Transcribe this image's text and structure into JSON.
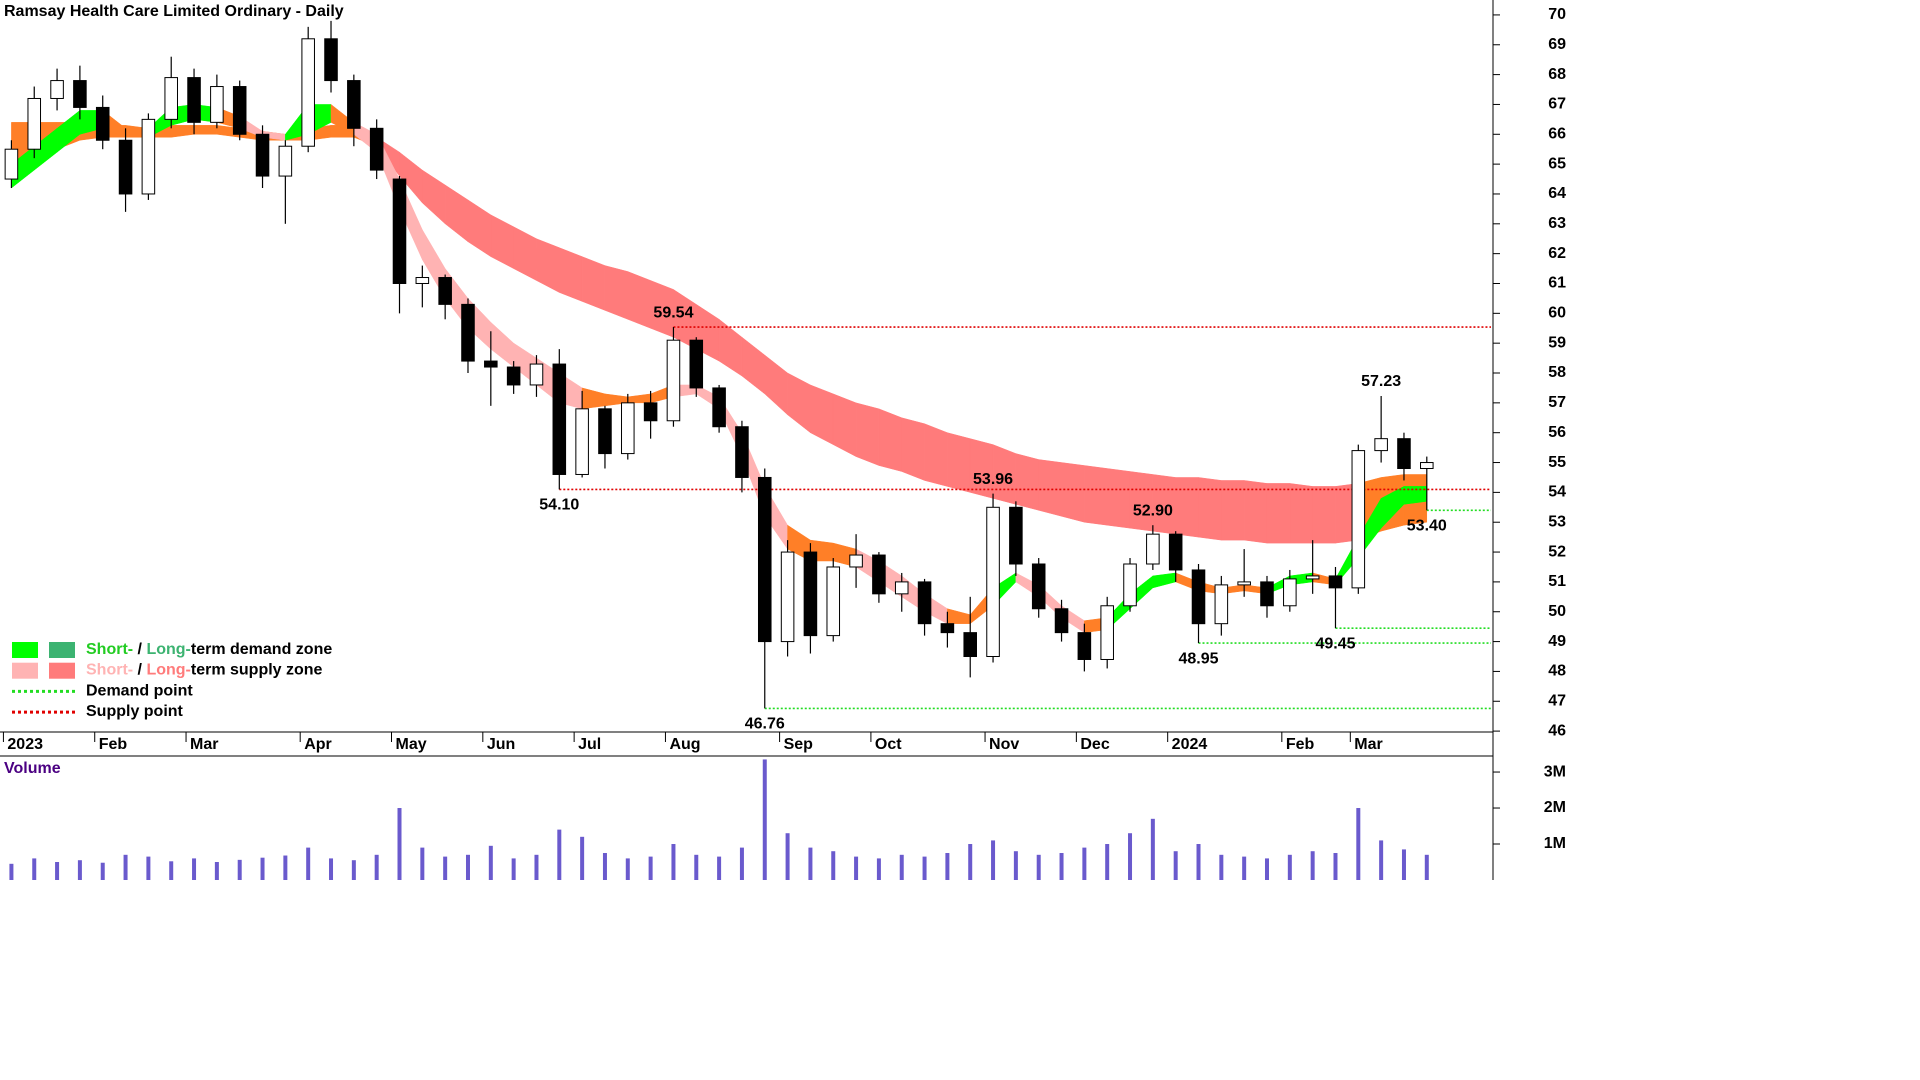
{
  "chart_data": {
    "type": "candlestick",
    "title": "Ramsay Health Care Limited Ordinary - Daily",
    "colors": {
      "up": "#ffffff",
      "down": "#000000",
      "outline": "#000000"
    },
    "open": [
      64.5,
      65.5,
      67.2,
      67.8,
      66.9,
      65.8,
      64.0,
      66.5,
      67.9,
      66.4,
      67.6,
      66.0,
      64.6,
      65.6,
      69.2,
      67.8,
      66.2,
      64.5,
      61.0,
      61.2,
      60.3,
      58.4,
      58.2,
      57.6,
      58.3,
      54.6,
      56.8,
      55.3,
      57.0,
      56.4,
      59.1,
      57.5,
      56.2,
      54.5,
      49.0,
      52.0,
      49.2,
      51.5,
      51.9,
      50.6,
      51.0,
      49.6,
      49.3,
      48.5,
      53.5,
      51.6,
      50.1,
      49.3,
      48.4,
      50.2,
      51.6,
      52.6,
      51.4,
      49.6,
      50.9,
      51.0,
      50.2,
      51.1,
      51.2,
      50.8,
      55.4,
      55.8,
      54.8
    ],
    "high": [
      65.8,
      67.6,
      68.2,
      68.3,
      67.3,
      66.2,
      66.7,
      68.6,
      68.2,
      68.0,
      67.8,
      66.3,
      65.8,
      69.6,
      69.8,
      68.0,
      66.5,
      64.6,
      61.6,
      61.3,
      60.5,
      59.4,
      58.4,
      58.6,
      58.8,
      57.4,
      56.9,
      57.3,
      57.4,
      59.54,
      59.2,
      57.6,
      56.4,
      54.8,
      52.4,
      52.3,
      51.8,
      52.6,
      52.0,
      51.3,
      51.1,
      50.0,
      50.5,
      53.96,
      53.7,
      51.8,
      50.4,
      49.6,
      50.5,
      51.8,
      52.9,
      52.7,
      51.6,
      51.2,
      52.1,
      51.2,
      51.4,
      52.4,
      51.5,
      55.6,
      57.23,
      56.0,
      55.2
    ],
    "low": [
      64.2,
      65.2,
      66.8,
      66.5,
      65.5,
      63.4,
      63.8,
      66.2,
      66.0,
      66.2,
      65.8,
      64.2,
      63.0,
      65.4,
      67.4,
      65.6,
      64.5,
      60.0,
      60.2,
      59.8,
      58.0,
      56.9,
      57.3,
      57.2,
      54.1,
      54.5,
      54.8,
      55.1,
      55.8,
      56.2,
      57.2,
      56.0,
      54.0,
      46.76,
      48.5,
      48.6,
      49.0,
      50.8,
      50.3,
      50.0,
      49.2,
      48.8,
      47.8,
      48.3,
      51.2,
      49.8,
      49.0,
      48.0,
      48.1,
      50.0,
      51.4,
      51.0,
      48.95,
      49.2,
      50.5,
      49.8,
      50.0,
      50.6,
      49.45,
      50.6,
      55.0,
      54.4,
      53.4
    ],
    "close": [
      65.5,
      67.2,
      67.8,
      66.9,
      65.8,
      64.0,
      66.5,
      67.9,
      66.4,
      67.6,
      66.0,
      64.6,
      65.6,
      69.2,
      67.8,
      66.2,
      64.8,
      61.0,
      61.2,
      60.3,
      58.4,
      58.2,
      57.6,
      58.3,
      54.6,
      56.8,
      55.3,
      57.0,
      56.4,
      59.1,
      57.5,
      56.2,
      54.5,
      49.0,
      52.0,
      49.2,
      51.5,
      51.9,
      50.6,
      51.0,
      49.6,
      49.3,
      48.5,
      53.5,
      51.6,
      50.1,
      49.3,
      48.4,
      50.2,
      51.6,
      52.6,
      51.4,
      49.6,
      50.9,
      51.0,
      50.2,
      51.1,
      51.2,
      50.8,
      55.4,
      55.8,
      54.8,
      55.0
    ],
    "volume": {
      "label": "Volume",
      "color": "#6a5acd",
      "values": [
        450000,
        600000,
        500000,
        550000,
        480000,
        700000,
        650000,
        520000,
        600000,
        500000,
        560000,
        620000,
        680000,
        900000,
        600000,
        550000,
        700000,
        2000000,
        900000,
        650000,
        700000,
        950000,
        600000,
        700000,
        1400000,
        1200000,
        750000,
        600000,
        650000,
        1000000,
        700000,
        650000,
        900000,
        3350000,
        1300000,
        900000,
        800000,
        650000,
        600000,
        700000,
        650000,
        750000,
        1000000,
        1100000,
        800000,
        700000,
        750000,
        900000,
        1000000,
        1300000,
        1700000,
        800000,
        1000000,
        700000,
        650000,
        600000,
        700000,
        800000,
        750000,
        2000000,
        1100000,
        850000,
        700000
      ],
      "ylim": [
        0,
        3390000
      ],
      "yticks": [
        {
          "value": 1000000,
          "label": "1M"
        },
        {
          "value": 2000000,
          "label": "2M"
        },
        {
          "value": 3000000,
          "label": "3M"
        }
      ]
    },
    "long_zone": {
      "upper": [
        66.4,
        66.4,
        66.4,
        66.4,
        66.3,
        66.3,
        66.2,
        66.3,
        66.3,
        66.3,
        66.2,
        66.1,
        66.0,
        66.2,
        66.3,
        66.3,
        65.9,
        65.4,
        64.8,
        64.3,
        63.8,
        63.3,
        62.9,
        62.5,
        62.2,
        61.9,
        61.6,
        61.4,
        61.1,
        60.8,
        60.3,
        59.8,
        59.2,
        58.6,
        58.0,
        57.6,
        57.3,
        57.0,
        56.8,
        56.5,
        56.3,
        56.0,
        55.8,
        55.6,
        55.3,
        55.1,
        55.0,
        54.9,
        54.8,
        54.7,
        54.6,
        54.5,
        54.5,
        54.4,
        54.4,
        54.3,
        54.3,
        54.2,
        54.2,
        54.3,
        54.5,
        54.6,
        54.6
      ],
      "lower": [
        64.2,
        65.0,
        65.5,
        65.8,
        65.9,
        65.9,
        65.9,
        65.9,
        66.0,
        66.0,
        65.9,
        65.8,
        65.8,
        65.8,
        65.9,
        65.9,
        65.6,
        64.6,
        63.7,
        63.0,
        62.4,
        61.9,
        61.5,
        61.1,
        60.7,
        60.4,
        60.1,
        59.8,
        59.5,
        59.2,
        58.8,
        58.4,
        57.9,
        57.3,
        56.6,
        56.0,
        55.6,
        55.2,
        54.9,
        54.7,
        54.4,
        54.2,
        54.0,
        53.8,
        53.6,
        53.4,
        53.2,
        53.0,
        52.9,
        52.8,
        52.7,
        52.6,
        52.5,
        52.4,
        52.4,
        52.3,
        52.3,
        52.3,
        52.3,
        52.4,
        52.7,
        52.9,
        53.0
      ],
      "colors": [
        "#ff7f27",
        "#ff7f27",
        "#ff7f27",
        "#ff7f27",
        "#ff7f27",
        "#ff7f27",
        "#ff7f27",
        "#ff7f27",
        "#ff7f27",
        "#ff7f27",
        "#ff7f27",
        "#ff7f27",
        "#ff7f27",
        "#ff7f27",
        "#ff7f27",
        "#ff7f27",
        "#ff7b7b",
        "#ff7b7b",
        "#ff7b7b",
        "#ff7b7b",
        "#ff7b7b",
        "#ff7b7b",
        "#ff7b7b",
        "#ff7b7b",
        "#ff7b7b",
        "#ff7b7b",
        "#ff7b7b",
        "#ff7b7b",
        "#ff7b7b",
        "#ff7b7b",
        "#ff7b7b",
        "#ff7b7b",
        "#ff7b7b",
        "#ff7b7b",
        "#ff7b7b",
        "#ff7b7b",
        "#ff7b7b",
        "#ff7b7b",
        "#ff7b7b",
        "#ff7b7b",
        "#ff7b7b",
        "#ff7b7b",
        "#ff7b7b",
        "#ff7b7b",
        "#ff7b7b",
        "#ff7b7b",
        "#ff7b7b",
        "#ff7b7b",
        "#ff7b7b",
        "#ff7b7b",
        "#ff7b7b",
        "#ff7b7b",
        "#ff7b7b",
        "#ff7b7b",
        "#ff7b7b",
        "#ff7b7b",
        "#ff7b7b",
        "#ff7b7b",
        "#ff7b7b",
        "#ff7f27",
        "#ff7f27",
        "#ff7f27",
        "#ff7f27"
      ]
    },
    "short_zone": {
      "upper": [
        65.0,
        65.6,
        66.2,
        66.8,
        66.8,
        66.2,
        66.2,
        66.9,
        67.0,
        66.9,
        66.6,
        66.1,
        66.0,
        67.0,
        67.0,
        66.4,
        66.0,
        64.5,
        62.8,
        61.5,
        60.5,
        59.7,
        59.0,
        58.5,
        58.0,
        57.5,
        57.3,
        57.2,
        57.3,
        57.6,
        57.6,
        57.2,
        56.0,
        54.2,
        52.9,
        52.4,
        52.3,
        52.1,
        51.7,
        51.2,
        50.6,
        50.1,
        49.9,
        50.8,
        51.3,
        50.9,
        50.2,
        49.7,
        49.8,
        50.6,
        51.2,
        51.3,
        51.0,
        50.8,
        50.9,
        50.8,
        51.2,
        51.3,
        51.1,
        52.5,
        53.8,
        54.2,
        54.2
      ],
      "lower": [
        64.2,
        64.8,
        65.4,
        66.0,
        66.2,
        65.9,
        65.9,
        66.3,
        66.5,
        66.4,
        66.2,
        65.9,
        65.8,
        66.0,
        66.4,
        66.0,
        65.4,
        63.5,
        61.8,
        60.5,
        59.5,
        58.8,
        58.2,
        57.6,
        57.0,
        56.8,
        56.9,
        57.0,
        57.0,
        57.2,
        57.3,
        56.8,
        55.2,
        53.2,
        52.1,
        51.7,
        51.7,
        51.5,
        51.0,
        50.5,
        50.0,
        49.6,
        49.6,
        50.2,
        51.0,
        50.5,
        49.8,
        49.3,
        49.4,
        50.1,
        50.8,
        51.0,
        50.7,
        50.6,
        50.7,
        50.6,
        50.9,
        51.0,
        50.9,
        51.8,
        52.8,
        53.6,
        53.7
      ],
      "colors": [
        "#00ff00",
        "#00ff00",
        "#00ff00",
        "#00ff00",
        "#ff7f27",
        "#ff7f27",
        "#00ff00",
        "#00ff00",
        "#00ff00",
        "#ff7f27",
        "#ffb3b3",
        "#ffb3b3",
        "#00ff00",
        "#00ff00",
        "#ff7f27",
        "#ffb3b3",
        "#ffb3b3",
        "#ffb3b3",
        "#ffb3b3",
        "#ffb3b3",
        "#ffb3b3",
        "#ffb3b3",
        "#ffb3b3",
        "#ffb3b3",
        "#ffb3b3",
        "#ff7f27",
        "#ff7f27",
        "#ff7f27",
        "#ff7f27",
        "#ffb3b3",
        "#ffb3b3",
        "#ffb3b3",
        "#ffb3b3",
        "#ffb3b3",
        "#ff7f27",
        "#ff7f27",
        "#ff7f27",
        "#ffb3b3",
        "#ffb3b3",
        "#ffb3b3",
        "#ffb3b3",
        "#ff7f27",
        "#ff7f27",
        "#00ff00",
        "#ffb3b3",
        "#ffb3b3",
        "#ffb3b3",
        "#ff7f27",
        "#00ff00",
        "#00ff00",
        "#00ff00",
        "#ff7f27",
        "#ff7f27",
        "#ff7f27",
        "#ff7f27",
        "#00ff00",
        "#00ff00",
        "#ff7f27",
        "#00ff00",
        "#00ff00",
        "#00ff00",
        "#00ff00",
        "#00ff00"
      ]
    },
    "points": [
      {
        "label": "59.54",
        "value": 59.54,
        "kind": "supply"
      },
      {
        "label": "54.10",
        "value": 54.1,
        "kind": "supply"
      },
      {
        "label": "46.76",
        "value": 46.76,
        "kind": "demand"
      },
      {
        "label": "53.96",
        "value": 53.96
      },
      {
        "label": "52.90",
        "value": 52.9
      },
      {
        "label": "48.95",
        "value": 48.95,
        "kind": "demand"
      },
      {
        "label": "49.45",
        "value": 49.45,
        "kind": "demand"
      },
      {
        "label": "57.23",
        "value": 57.23
      },
      {
        "label": "53.40",
        "value": 53.4,
        "kind": "demand"
      }
    ],
    "point_colors": {
      "supply": "#e00000",
      "demand": "#22dd22"
    },
    "legend": [
      {
        "swatches": [
          "#00ff00",
          "#3cb371"
        ],
        "parts": [
          {
            "text": "Short-",
            "color": "#22cc22"
          },
          {
            "text": " / ",
            "color": "#000000"
          },
          {
            "text": "Long-",
            "color": "#3cb371"
          },
          {
            "text": "term demand zone",
            "color": "#000000"
          }
        ]
      },
      {
        "swatches": [
          "#ffb3b3",
          "#ff7b7b"
        ],
        "parts": [
          {
            "text": "Short-",
            "color": "#ffb3b3"
          },
          {
            "text": " / ",
            "color": "#000000"
          },
          {
            "text": "Long-",
            "color": "#ff7b7b"
          },
          {
            "text": "term supply zone",
            "color": "#000000"
          }
        ]
      },
      {
        "line": "#22dd22",
        "parts": [
          {
            "text": "Demand point",
            "color": "#000000"
          }
        ]
      },
      {
        "line": "#e00000",
        "parts": [
          {
            "text": "Supply point",
            "color": "#000000"
          }
        ]
      }
    ],
    "xlim": [
      -0.5,
      64.9
    ],
    "xticks": [
      {
        "value": 0,
        "label": "2023"
      },
      {
        "value": 4,
        "label": "Feb"
      },
      {
        "value": 8,
        "label": "Mar"
      },
      {
        "value": 13,
        "label": "Apr"
      },
      {
        "value": 17,
        "label": "May"
      },
      {
        "value": 21,
        "label": "Jun"
      },
      {
        "value": 25,
        "label": "Jul"
      },
      {
        "value": 29,
        "label": "Aug"
      },
      {
        "value": 34,
        "label": "Sep"
      },
      {
        "value": 38,
        "label": "Oct"
      },
      {
        "value": 43,
        "label": "Nov"
      },
      {
        "value": 47,
        "label": "Dec"
      },
      {
        "value": 51,
        "label": "2024"
      },
      {
        "value": 56,
        "label": "Feb"
      },
      {
        "value": 59,
        "label": "Mar"
      }
    ],
    "ylim": [
      45.97,
      70.5
    ],
    "yticks": [
      46,
      47,
      48,
      49,
      50,
      51,
      52,
      53,
      54,
      55,
      56,
      57,
      58,
      59,
      60,
      61,
      62,
      63,
      64,
      65,
      66,
      67,
      68,
      69,
      70
    ]
  }
}
